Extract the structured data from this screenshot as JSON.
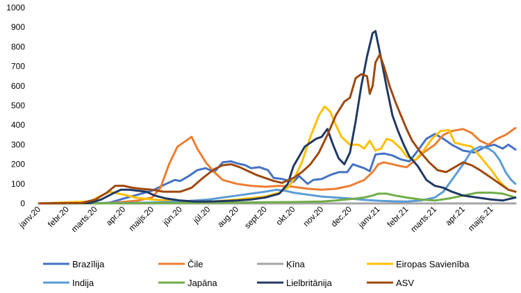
{
  "chart_data": {
    "type": "line",
    "title": "",
    "xlabel": "",
    "ylabel": "",
    "ylim": [
      0,
      1000
    ],
    "yticks": [
      0,
      100,
      200,
      300,
      400,
      500,
      600,
      700,
      800,
      900,
      1000
    ],
    "x_tick_labels": [
      "janv.20",
      "febr.20",
      "marts.20",
      "apr.20",
      "maijs.20",
      "jūn.20",
      "jūl.20",
      "aug.20",
      "sept.20",
      "okt.20",
      "nov.20",
      "dec.20",
      "janv.21",
      "febr.21",
      "marts.21",
      "apr.21",
      "maijs.21"
    ],
    "x_unit": "month index (0 = janv.20)",
    "xlim": [
      0,
      16.85
    ],
    "grid": false,
    "legend_position": "bottom",
    "series": [
      {
        "name": "Brazīlija",
        "color": "#4472C4",
        "points": [
          [
            0,
            0
          ],
          [
            1,
            0
          ],
          [
            2,
            0
          ],
          [
            2.5,
            4
          ],
          [
            3,
            25
          ],
          [
            3.5,
            45
          ],
          [
            4,
            65
          ],
          [
            4.5,
            100
          ],
          [
            4.8,
            120
          ],
          [
            5,
            115
          ],
          [
            5.3,
            140
          ],
          [
            5.6,
            170
          ],
          [
            5.9,
            180
          ],
          [
            6.2,
            160
          ],
          [
            6.5,
            210
          ],
          [
            6.8,
            215
          ],
          [
            7,
            205
          ],
          [
            7.3,
            195
          ],
          [
            7.5,
            180
          ],
          [
            7.8,
            185
          ],
          [
            8.1,
            170
          ],
          [
            8.3,
            130
          ],
          [
            8.6,
            125
          ],
          [
            9,
            110
          ],
          [
            9.2,
            140
          ],
          [
            9.5,
            100
          ],
          [
            9.7,
            120
          ],
          [
            10,
            125
          ],
          [
            10.3,
            145
          ],
          [
            10.6,
            160
          ],
          [
            10.9,
            160
          ],
          [
            11.1,
            200
          ],
          [
            11.3,
            190
          ],
          [
            11.5,
            180
          ],
          [
            11.7,
            165
          ],
          [
            11.9,
            250
          ],
          [
            12.2,
            255
          ],
          [
            12.5,
            245
          ],
          [
            12.8,
            225
          ],
          [
            13.1,
            215
          ],
          [
            13.4,
            270
          ],
          [
            13.7,
            330
          ],
          [
            14,
            355
          ],
          [
            14.3,
            330
          ],
          [
            14.6,
            300
          ],
          [
            15,
            270
          ],
          [
            15.4,
            260
          ],
          [
            15.8,
            290
          ],
          [
            16.1,
            300
          ],
          [
            16.4,
            280
          ],
          [
            16.6,
            300
          ],
          [
            16.85,
            275
          ]
        ]
      },
      {
        "name": "Čile",
        "color": "#ED7D31",
        "points": [
          [
            0,
            0
          ],
          [
            2,
            0
          ],
          [
            2.5,
            2
          ],
          [
            3,
            8
          ],
          [
            3.5,
            15
          ],
          [
            4,
            30
          ],
          [
            4.3,
            80
          ],
          [
            4.6,
            200
          ],
          [
            4.9,
            290
          ],
          [
            5.2,
            320
          ],
          [
            5.4,
            340
          ],
          [
            5.6,
            280
          ],
          [
            5.9,
            210
          ],
          [
            6.2,
            160
          ],
          [
            6.5,
            120
          ],
          [
            7,
            100
          ],
          [
            7.5,
            90
          ],
          [
            8,
            85
          ],
          [
            8.5,
            90
          ],
          [
            9,
            85
          ],
          [
            9.5,
            75
          ],
          [
            10,
            70
          ],
          [
            10.5,
            75
          ],
          [
            11,
            90
          ],
          [
            11.5,
            120
          ],
          [
            11.8,
            160
          ],
          [
            12,
            200
          ],
          [
            12.2,
            210
          ],
          [
            12.5,
            200
          ],
          [
            12.8,
            190
          ],
          [
            13,
            185
          ],
          [
            13.3,
            220
          ],
          [
            13.6,
            260
          ],
          [
            14,
            300
          ],
          [
            14.3,
            350
          ],
          [
            14.6,
            370
          ],
          [
            15,
            380
          ],
          [
            15.3,
            360
          ],
          [
            15.6,
            320
          ],
          [
            15.9,
            300
          ],
          [
            16.2,
            330
          ],
          [
            16.5,
            350
          ],
          [
            16.85,
            385
          ]
        ]
      },
      {
        "name": "Ķīna",
        "color": "#A5A5A5",
        "points": [
          [
            0,
            0
          ],
          [
            0.5,
            2
          ],
          [
            1,
            5
          ],
          [
            1.3,
            8
          ],
          [
            1.6,
            5
          ],
          [
            2,
            2
          ],
          [
            2.5,
            1
          ],
          [
            3,
            0
          ],
          [
            6,
            0
          ],
          [
            10,
            0
          ],
          [
            14,
            0
          ],
          [
            16.85,
            0
          ]
        ]
      },
      {
        "name": "Eiropas Savienība",
        "color": "#FFC000",
        "points": [
          [
            0,
            0
          ],
          [
            1.8,
            10
          ],
          [
            2.2,
            40
          ],
          [
            2.5,
            60
          ],
          [
            2.8,
            50
          ],
          [
            3,
            45
          ],
          [
            3.4,
            30
          ],
          [
            4,
            20
          ],
          [
            4.5,
            15
          ],
          [
            5,
            10
          ],
          [
            6,
            8
          ],
          [
            7,
            20
          ],
          [
            8,
            35
          ],
          [
            8.5,
            55
          ],
          [
            8.8,
            80
          ],
          [
            9,
            120
          ],
          [
            9.3,
            210
          ],
          [
            9.6,
            340
          ],
          [
            9.9,
            450
          ],
          [
            10.1,
            495
          ],
          [
            10.3,
            470
          ],
          [
            10.5,
            400
          ],
          [
            10.7,
            340
          ],
          [
            11,
            300
          ],
          [
            11.3,
            300
          ],
          [
            11.5,
            280
          ],
          [
            11.7,
            320
          ],
          [
            11.9,
            270
          ],
          [
            12.1,
            280
          ],
          [
            12.3,
            330
          ],
          [
            12.5,
            320
          ],
          [
            12.8,
            280
          ],
          [
            13,
            240
          ],
          [
            13.3,
            220
          ],
          [
            13.6,
            270
          ],
          [
            13.9,
            330
          ],
          [
            14.2,
            370
          ],
          [
            14.5,
            375
          ],
          [
            14.7,
            310
          ],
          [
            15,
            300
          ],
          [
            15.3,
            290
          ],
          [
            15.6,
            240
          ],
          [
            16,
            170
          ],
          [
            16.3,
            110
          ],
          [
            16.6,
            70
          ],
          [
            16.85,
            60
          ]
        ]
      },
      {
        "name": "Indija",
        "color": "#5B9BD5",
        "points": [
          [
            0,
            0
          ],
          [
            3,
            2
          ],
          [
            4,
            5
          ],
          [
            5,
            10
          ],
          [
            6,
            20
          ],
          [
            6.5,
            30
          ],
          [
            7,
            40
          ],
          [
            7.5,
            50
          ],
          [
            8,
            60
          ],
          [
            8.4,
            70
          ],
          [
            8.7,
            65
          ],
          [
            9,
            55
          ],
          [
            9.5,
            45
          ],
          [
            10,
            35
          ],
          [
            10.5,
            30
          ],
          [
            11,
            25
          ],
          [
            11.5,
            18
          ],
          [
            12,
            14
          ],
          [
            12.5,
            11
          ],
          [
            13,
            10
          ],
          [
            13.5,
            15
          ],
          [
            14,
            30
          ],
          [
            14.3,
            60
          ],
          [
            14.6,
            120
          ],
          [
            15,
            200
          ],
          [
            15.3,
            270
          ],
          [
            15.6,
            290
          ],
          [
            15.9,
            280
          ],
          [
            16.1,
            260
          ],
          [
            16.3,
            220
          ],
          [
            16.5,
            160
          ],
          [
            16.7,
            120
          ],
          [
            16.85,
            100
          ]
        ]
      },
      {
        "name": "Japāna",
        "color": "#70AD47",
        "points": [
          [
            0,
            0
          ],
          [
            3,
            1
          ],
          [
            5,
            2
          ],
          [
            7,
            4
          ],
          [
            8,
            6
          ],
          [
            9,
            7
          ],
          [
            10,
            10
          ],
          [
            10.5,
            15
          ],
          [
            11,
            22
          ],
          [
            11.5,
            30
          ],
          [
            11.8,
            40
          ],
          [
            12,
            50
          ],
          [
            12.3,
            50
          ],
          [
            12.6,
            40
          ],
          [
            13,
            30
          ],
          [
            13.5,
            20
          ],
          [
            14,
            15
          ],
          [
            14.5,
            25
          ],
          [
            15,
            40
          ],
          [
            15.5,
            55
          ],
          [
            16,
            55
          ],
          [
            16.4,
            50
          ],
          [
            16.85,
            30
          ]
        ]
      },
      {
        "name": "Lielbritānija",
        "color": "#203864",
        "points": [
          [
            0,
            0
          ],
          [
            1.8,
            2
          ],
          [
            2.2,
            20
          ],
          [
            2.6,
            50
          ],
          [
            2.9,
            70
          ],
          [
            3.2,
            70
          ],
          [
            3.5,
            65
          ],
          [
            3.8,
            60
          ],
          [
            4.1,
            40
          ],
          [
            4.5,
            25
          ],
          [
            5,
            15
          ],
          [
            5.5,
            10
          ],
          [
            6,
            10
          ],
          [
            6.5,
            12
          ],
          [
            7,
            15
          ],
          [
            7.5,
            20
          ],
          [
            8,
            30
          ],
          [
            8.5,
            50
          ],
          [
            8.8,
            100
          ],
          [
            9,
            190
          ],
          [
            9.2,
            240
          ],
          [
            9.4,
            290
          ],
          [
            9.6,
            310
          ],
          [
            9.8,
            330
          ],
          [
            10,
            340
          ],
          [
            10.2,
            380
          ],
          [
            10.4,
            300
          ],
          [
            10.6,
            230
          ],
          [
            10.8,
            200
          ],
          [
            11,
            260
          ],
          [
            11.2,
            420
          ],
          [
            11.4,
            600
          ],
          [
            11.6,
            750
          ],
          [
            11.8,
            870
          ],
          [
            11.9,
            880
          ],
          [
            12.1,
            740
          ],
          [
            12.3,
            590
          ],
          [
            12.5,
            450
          ],
          [
            12.7,
            370
          ],
          [
            12.9,
            300
          ],
          [
            13.1,
            240
          ],
          [
            13.4,
            190
          ],
          [
            13.7,
            120
          ],
          [
            14,
            90
          ],
          [
            14.3,
            80
          ],
          [
            14.6,
            60
          ],
          [
            15,
            40
          ],
          [
            15.5,
            30
          ],
          [
            16,
            20
          ],
          [
            16.4,
            15
          ],
          [
            16.85,
            30
          ]
        ]
      },
      {
        "name": "ASV",
        "color": "#9E480E",
        "points": [
          [
            0,
            0
          ],
          [
            1.5,
            2
          ],
          [
            2,
            20
          ],
          [
            2.4,
            55
          ],
          [
            2.7,
            90
          ],
          [
            3,
            90
          ],
          [
            3.3,
            80
          ],
          [
            3.6,
            75
          ],
          [
            4,
            70
          ],
          [
            4.4,
            60
          ],
          [
            5,
            60
          ],
          [
            5.4,
            80
          ],
          [
            5.8,
            130
          ],
          [
            6.2,
            175
          ],
          [
            6.5,
            195
          ],
          [
            6.8,
            200
          ],
          [
            7.1,
            185
          ],
          [
            7.4,
            165
          ],
          [
            7.7,
            145
          ],
          [
            8,
            130
          ],
          [
            8.3,
            115
          ],
          [
            8.6,
            105
          ],
          [
            9,
            130
          ],
          [
            9.3,
            160
          ],
          [
            9.6,
            200
          ],
          [
            9.9,
            260
          ],
          [
            10.2,
            350
          ],
          [
            10.5,
            450
          ],
          [
            10.8,
            520
          ],
          [
            11,
            540
          ],
          [
            11.2,
            640
          ],
          [
            11.4,
            660
          ],
          [
            11.6,
            650
          ],
          [
            11.7,
            560
          ],
          [
            11.8,
            600
          ],
          [
            11.9,
            720
          ],
          [
            12.05,
            760
          ],
          [
            12.2,
            700
          ],
          [
            12.4,
            600
          ],
          [
            12.6,
            520
          ],
          [
            12.8,
            450
          ],
          [
            13,
            380
          ],
          [
            13.2,
            320
          ],
          [
            13.5,
            260
          ],
          [
            13.8,
            210
          ],
          [
            14.1,
            170
          ],
          [
            14.4,
            160
          ],
          [
            14.7,
            185
          ],
          [
            15,
            210
          ],
          [
            15.3,
            195
          ],
          [
            15.6,
            170
          ],
          [
            16,
            130
          ],
          [
            16.3,
            100
          ],
          [
            16.6,
            70
          ],
          [
            16.85,
            60
          ]
        ]
      }
    ]
  }
}
